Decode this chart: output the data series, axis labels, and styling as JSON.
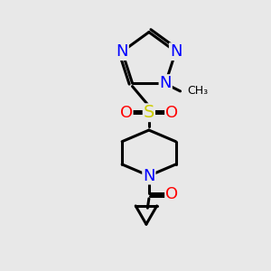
{
  "bg_color": "#e8e8e8",
  "bond_color": "#000000",
  "bond_width": 2.2,
  "atom_colors": {
    "N": "#0000ff",
    "O": "#ff0000",
    "S": "#cccc00",
    "C": "#000000"
  },
  "font_size_atom": 13,
  "font_size_methyl": 11,
  "fig_width": 3.0,
  "fig_height": 3.0,
  "dpi": 100
}
